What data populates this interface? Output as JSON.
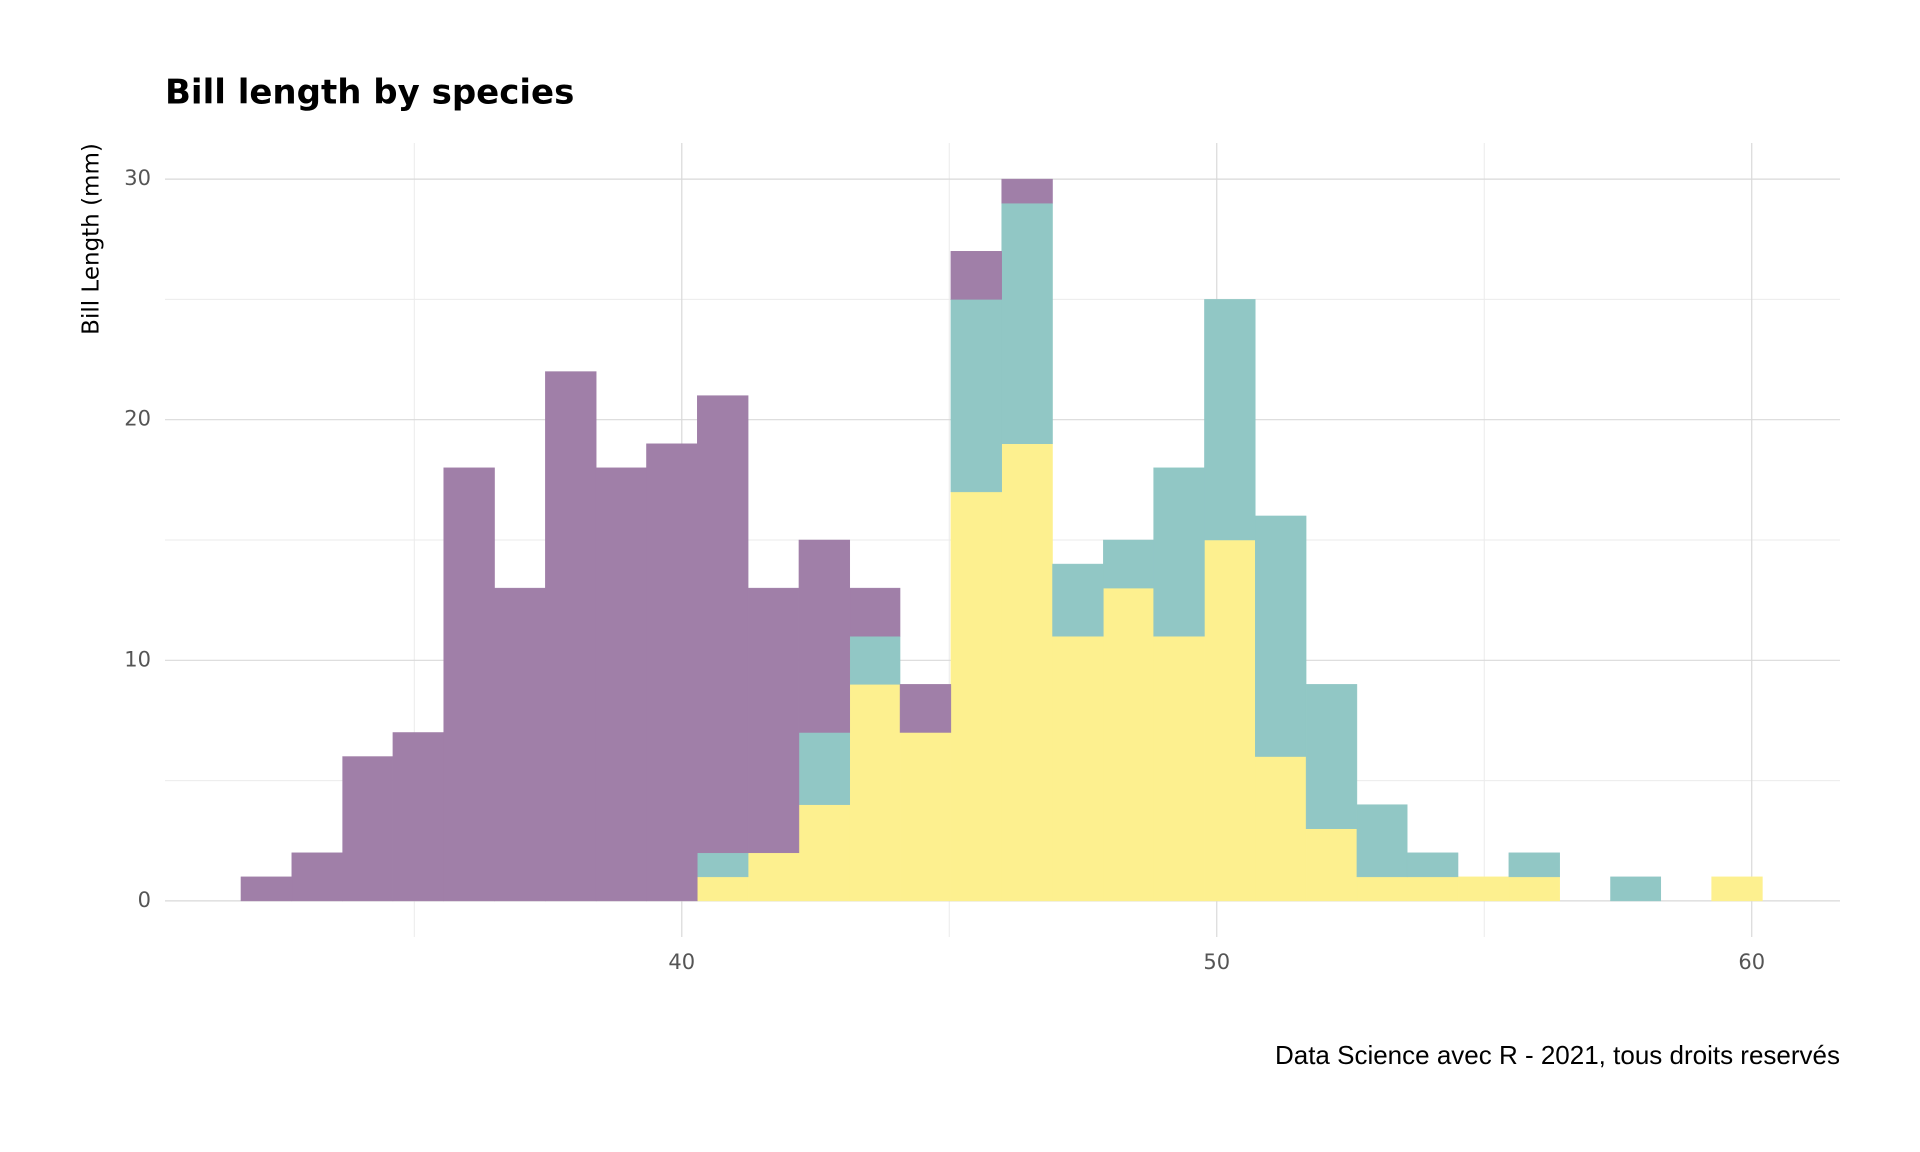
{
  "chart_data": {
    "type": "histogram",
    "title": "Bill length by species",
    "y_label": "Bill Length (mm)",
    "caption": "Data Science avec R - 2021, tous droits reservés",
    "bins": [
      31.76,
      32.71,
      33.66,
      34.6,
      35.55,
      36.5,
      37.45,
      38.4,
      39.34,
      40.29,
      41.24,
      42.19,
      43.14,
      44.08,
      45.03,
      45.98,
      46.93,
      47.88,
      48.82,
      49.77,
      50.72,
      51.67,
      52.62,
      53.56,
      54.51,
      55.46,
      56.41,
      57.36,
      58.3,
      59.25,
      60.2
    ],
    "stacked": true,
    "series": [
      {
        "color": "#fdf08f",
        "values": [
          0,
          0,
          0,
          0,
          0,
          0,
          0,
          0,
          0,
          1,
          2,
          4,
          9,
          7,
          17,
          19,
          11,
          13,
          11,
          15,
          6,
          3,
          1,
          1,
          1,
          1,
          0,
          0,
          0,
          1
        ]
      },
      {
        "color": "#91c7c5",
        "values": [
          0,
          0,
          0,
          0,
          0,
          0,
          0,
          0,
          0,
          1,
          0,
          3,
          2,
          0,
          8,
          10,
          3,
          2,
          7,
          10,
          10,
          6,
          3,
          1,
          0,
          1,
          0,
          1,
          0,
          0
        ]
      },
      {
        "color": "#a07fa8",
        "values": [
          1,
          2,
          6,
          7,
          18,
          13,
          22,
          18,
          19,
          19,
          11,
          8,
          2,
          2,
          2,
          1,
          0,
          0,
          0,
          0,
          0,
          0,
          0,
          0,
          0,
          0,
          0,
          0,
          0,
          0
        ]
      }
    ],
    "xlim": [
      30.34,
      61.65
    ],
    "xticks": [
      40,
      50,
      60
    ],
    "xminor": [
      35,
      45,
      55
    ],
    "ylim": [
      -1.5,
      31.5
    ],
    "yticks": [
      0,
      10,
      20,
      30
    ],
    "yminor": [
      5,
      15,
      25
    ],
    "grid": true
  }
}
